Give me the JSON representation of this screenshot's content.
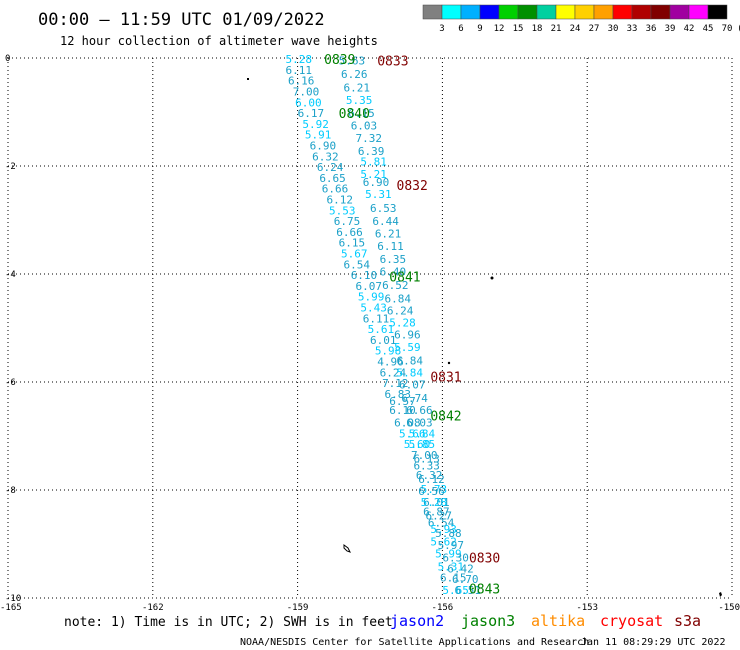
{
  "header": {
    "title": "00:00 – 11:59 UTC 01/09/2022",
    "subtitle": "12 hour collection of altimeter wave heights"
  },
  "legend": {
    "labels": [
      "3",
      "6",
      "9",
      "12",
      "15",
      "18",
      "21",
      "24",
      "27",
      "30",
      "33",
      "36",
      "39",
      "42",
      "45",
      "70",
      "(ft)"
    ],
    "colors": [
      "#808080",
      "#00ffff",
      "#00b0ff",
      "#0000ff",
      "#00d000",
      "#009000",
      "#00d0a0",
      "#ffff00",
      "#ffd000",
      "#ffa000",
      "#ff0000",
      "#b00000",
      "#800000",
      "#a000a0",
      "#ff00ff",
      "#000000"
    ]
  },
  "footer": {
    "note": "note: 1) Time is in UTC; 2) SWH is in feet",
    "satellites": [
      {
        "name": "jason2",
        "color": "#0000ff"
      },
      {
        "name": "jason3",
        "color": "#008000"
      },
      {
        "name": "altika",
        "color": "#ff8c00"
      },
      {
        "name": "cryosat",
        "color": "#ff0000"
      },
      {
        "name": "s3a",
        "color": "#800000"
      }
    ],
    "credit": "NOAA/NESDIS Center for Satellite Applications and Research",
    "timestamp": "Jan 11 08:29:29 UTC 2022"
  },
  "chart_data": {
    "type": "scatter",
    "xlim": [
      -165,
      -150
    ],
    "ylim": [
      -10,
      0
    ],
    "x_ticks": [
      -165,
      -162,
      -159,
      -156,
      -153,
      -150
    ],
    "y_ticks": [
      0,
      -2,
      -4,
      -6,
      -8,
      -10
    ],
    "grid": true,
    "colors": {
      "swh_light": "#00ccff",
      "swh_dark": "#1ba0c8",
      "jason3_time": "#008000",
      "s3a_time": "#800000"
    },
    "swh_values": [
      {
        "x": -159.25,
        "y": -0.02,
        "v": "5.28",
        "c": "swh_light"
      },
      {
        "x": -158.15,
        "y": -0.05,
        "v": "5.63",
        "c": "swh_dark"
      },
      {
        "x": -159.25,
        "y": -0.22,
        "v": "6.11",
        "c": "swh_dark"
      },
      {
        "x": -158.1,
        "y": -0.3,
        "v": "6.26",
        "c": "swh_dark"
      },
      {
        "x": -159.2,
        "y": -0.42,
        "v": "6.16",
        "c": "swh_dark"
      },
      {
        "x": -158.05,
        "y": -0.55,
        "v": "6.21",
        "c": "swh_dark"
      },
      {
        "x": -159.1,
        "y": -0.62,
        "v": "7.00",
        "c": "swh_dark"
      },
      {
        "x": -158.0,
        "y": -0.78,
        "v": "5.35",
        "c": "swh_light"
      },
      {
        "x": -159.05,
        "y": -0.82,
        "v": "6.00",
        "c": "swh_light"
      },
      {
        "x": -159.0,
        "y": -1.02,
        "v": "6.17",
        "c": "swh_dark"
      },
      {
        "x": -157.95,
        "y": -1.02,
        "v": "6.15",
        "c": "swh_dark"
      },
      {
        "x": -158.9,
        "y": -1.22,
        "v": "5.92",
        "c": "swh_light"
      },
      {
        "x": -157.9,
        "y": -1.25,
        "v": "6.03",
        "c": "swh_dark"
      },
      {
        "x": -158.85,
        "y": -1.42,
        "v": "5.91",
        "c": "swh_light"
      },
      {
        "x": -157.8,
        "y": -1.48,
        "v": "7.32",
        "c": "swh_dark"
      },
      {
        "x": -158.75,
        "y": -1.62,
        "v": "6.90",
        "c": "swh_dark"
      },
      {
        "x": -157.75,
        "y": -1.72,
        "v": "6.39",
        "c": "swh_dark"
      },
      {
        "x": -158.7,
        "y": -1.82,
        "v": "6.32",
        "c": "swh_dark"
      },
      {
        "x": -157.7,
        "y": -1.92,
        "v": "5.81",
        "c": "swh_light"
      },
      {
        "x": -158.6,
        "y": -2.02,
        "v": "6.24",
        "c": "swh_dark"
      },
      {
        "x": -157.7,
        "y": -2.15,
        "v": "5.21",
        "c": "swh_light"
      },
      {
        "x": -158.55,
        "y": -2.22,
        "v": "6.65",
        "c": "swh_dark"
      },
      {
        "x": -157.65,
        "y": -2.3,
        "v": "6.90",
        "c": "swh_dark"
      },
      {
        "x": -158.5,
        "y": -2.42,
        "v": "6.66",
        "c": "swh_dark"
      },
      {
        "x": -157.6,
        "y": -2.52,
        "v": "5.31",
        "c": "swh_light"
      },
      {
        "x": -158.4,
        "y": -2.62,
        "v": "6.12",
        "c": "swh_dark"
      },
      {
        "x": -157.5,
        "y": -2.78,
        "v": "6.53",
        "c": "swh_dark"
      },
      {
        "x": -158.35,
        "y": -2.82,
        "v": "5.53",
        "c": "swh_light"
      },
      {
        "x": -157.45,
        "y": -3.02,
        "v": "6.44",
        "c": "swh_dark"
      },
      {
        "x": -158.25,
        "y": -3.02,
        "v": "6.75",
        "c": "swh_dark"
      },
      {
        "x": -158.2,
        "y": -3.22,
        "v": "6.66",
        "c": "swh_dark"
      },
      {
        "x": -157.4,
        "y": -3.25,
        "v": "6.21",
        "c": "swh_dark"
      },
      {
        "x": -158.15,
        "y": -3.42,
        "v": "6.15",
        "c": "swh_dark"
      },
      {
        "x": -157.35,
        "y": -3.48,
        "v": "6.11",
        "c": "swh_dark"
      },
      {
        "x": -158.1,
        "y": -3.62,
        "v": "5.67",
        "c": "swh_light"
      },
      {
        "x": -157.3,
        "y": -3.72,
        "v": "6.35",
        "c": "swh_dark"
      },
      {
        "x": -158.05,
        "y": -3.82,
        "v": "6.54",
        "c": "swh_dark"
      },
      {
        "x": -157.9,
        "y": -4.02,
        "v": "6.10",
        "c": "swh_dark"
      },
      {
        "x": -157.3,
        "y": -3.95,
        "v": "6.40",
        "c": "swh_dark"
      },
      {
        "x": -157.25,
        "y": -4.2,
        "v": "6.52",
        "c": "swh_dark"
      },
      {
        "x": -157.8,
        "y": -4.22,
        "v": "6.07",
        "c": "swh_dark"
      },
      {
        "x": -157.75,
        "y": -4.42,
        "v": "5.99",
        "c": "swh_light"
      },
      {
        "x": -157.2,
        "y": -4.45,
        "v": "6.84",
        "c": "swh_dark"
      },
      {
        "x": -157.7,
        "y": -4.62,
        "v": "5.43",
        "c": "swh_light"
      },
      {
        "x": -157.15,
        "y": -4.68,
        "v": "6.24",
        "c": "swh_dark"
      },
      {
        "x": -157.65,
        "y": -4.82,
        "v": "6.11",
        "c": "swh_dark"
      },
      {
        "x": -157.1,
        "y": -4.9,
        "v": "5.28",
        "c": "swh_light"
      },
      {
        "x": -157.55,
        "y": -5.02,
        "v": "5.61",
        "c": "swh_light"
      },
      {
        "x": -157.0,
        "y": -5.12,
        "v": "6.96",
        "c": "swh_dark"
      },
      {
        "x": -157.5,
        "y": -5.22,
        "v": "6.01",
        "c": "swh_dark"
      },
      {
        "x": -157.0,
        "y": -5.35,
        "v": "5.59",
        "c": "swh_light"
      },
      {
        "x": -157.4,
        "y": -5.42,
        "v": "5.98",
        "c": "swh_light"
      },
      {
        "x": -156.95,
        "y": -5.6,
        "v": "6.84",
        "c": "swh_dark"
      },
      {
        "x": -157.35,
        "y": -5.62,
        "v": "4.96",
        "c": "swh_dark"
      },
      {
        "x": -157.3,
        "y": -5.82,
        "v": "6.24",
        "c": "swh_dark"
      },
      {
        "x": -156.95,
        "y": -5.82,
        "v": "5.84",
        "c": "swh_light"
      },
      {
        "x": -157.25,
        "y": -6.02,
        "v": "7.12",
        "c": "swh_dark"
      },
      {
        "x": -156.9,
        "y": -6.05,
        "v": "6.07",
        "c": "swh_dark"
      },
      {
        "x": -157.2,
        "y": -6.22,
        "v": "6.83",
        "c": "swh_dark"
      },
      {
        "x": -156.85,
        "y": -6.3,
        "v": "6.74",
        "c": "swh_dark"
      },
      {
        "x": -157.1,
        "y": -6.35,
        "v": "6.57",
        "c": "swh_dark"
      },
      {
        "x": -157.1,
        "y": -6.52,
        "v": "6.10",
        "c": "swh_dark"
      },
      {
        "x": -156.75,
        "y": -6.52,
        "v": "6.66",
        "c": "swh_dark"
      },
      {
        "x": -157.0,
        "y": -6.75,
        "v": "6.08",
        "c": "swh_dark"
      },
      {
        "x": -156.75,
        "y": -6.75,
        "v": "6.03",
        "c": "swh_dark"
      },
      {
        "x": -156.9,
        "y": -6.95,
        "v": "5.66",
        "c": "swh_light"
      },
      {
        "x": -156.7,
        "y": -6.95,
        "v": "5.84",
        "c": "swh_light"
      },
      {
        "x": -156.8,
        "y": -7.15,
        "v": "5.60",
        "c": "swh_light"
      },
      {
        "x": -156.7,
        "y": -7.15,
        "v": "5.85",
        "c": "swh_light"
      },
      {
        "x": -156.65,
        "y": -7.35,
        "v": "7.00",
        "c": "swh_dark"
      },
      {
        "x": -156.6,
        "y": -7.42,
        "v": "6.13",
        "c": "swh_dark"
      },
      {
        "x": -156.6,
        "y": -7.55,
        "v": "6.33",
        "c": "swh_dark"
      },
      {
        "x": -156.55,
        "y": -7.72,
        "v": "6.32",
        "c": "swh_dark"
      },
      {
        "x": -156.5,
        "y": -7.8,
        "v": "6.12",
        "c": "swh_dark"
      },
      {
        "x": -156.45,
        "y": -7.98,
        "v": "5.73",
        "c": "swh_light"
      },
      {
        "x": -156.5,
        "y": -8.02,
        "v": "6.56",
        "c": "swh_dark"
      },
      {
        "x": -156.4,
        "y": -8.22,
        "v": "6.01",
        "c": "swh_dark"
      },
      {
        "x": -156.45,
        "y": -8.22,
        "v": "5.28",
        "c": "swh_light"
      },
      {
        "x": -156.4,
        "y": -8.4,
        "v": "6.87",
        "c": "swh_dark"
      },
      {
        "x": -156.35,
        "y": -8.47,
        "v": "6.27",
        "c": "swh_dark"
      },
      {
        "x": -156.3,
        "y": -8.6,
        "v": "6.54",
        "c": "swh_dark"
      },
      {
        "x": -156.25,
        "y": -8.72,
        "v": "5.93",
        "c": "swh_light"
      },
      {
        "x": -156.15,
        "y": -8.8,
        "v": "5.88",
        "c": "swh_dark"
      },
      {
        "x": -156.25,
        "y": -8.95,
        "v": "5.62",
        "c": "swh_light"
      },
      {
        "x": -156.1,
        "y": -9.02,
        "v": "5.97",
        "c": "swh_dark"
      },
      {
        "x": -156.15,
        "y": -9.18,
        "v": "5.99",
        "c": "swh_light"
      },
      {
        "x": -156.0,
        "y": -9.25,
        "v": "6.30",
        "c": "swh_dark"
      },
      {
        "x": -156.1,
        "y": -9.42,
        "v": "5.31",
        "c": "swh_light"
      },
      {
        "x": -155.9,
        "y": -9.45,
        "v": "6.42",
        "c": "swh_dark"
      },
      {
        "x": -156.05,
        "y": -9.62,
        "v": "6.15",
        "c": "swh_dark"
      },
      {
        "x": -155.8,
        "y": -9.65,
        "v": "6.70",
        "c": "swh_dark"
      },
      {
        "x": -156.0,
        "y": -9.85,
        "v": "5.65",
        "c": "swh_light"
      },
      {
        "x": -155.75,
        "y": -9.85,
        "v": "6.51",
        "c": "swh_dark"
      }
    ],
    "time_labels": [
      {
        "x": -158.45,
        "y": -0.02,
        "v": "0839",
        "c": "jason3_time"
      },
      {
        "x": -157.35,
        "y": -0.05,
        "v": "0833",
        "c": "s3a_time"
      },
      {
        "x": -158.15,
        "y": -1.02,
        "v": "0840",
        "c": "jason3_time"
      },
      {
        "x": -156.95,
        "y": -2.35,
        "v": "0832",
        "c": "s3a_time"
      },
      {
        "x": -157.1,
        "y": -4.05,
        "v": "0841",
        "c": "jason3_time"
      },
      {
        "x": -156.25,
        "y": -5.9,
        "v": "0831",
        "c": "s3a_time"
      },
      {
        "x": -156.25,
        "y": -6.62,
        "v": "0842",
        "c": "jason3_time"
      },
      {
        "x": -155.45,
        "y": -9.25,
        "v": "0830",
        "c": "s3a_time"
      },
      {
        "x": -155.45,
        "y": -9.82,
        "v": "0843",
        "c": "jason3_time"
      }
    ]
  }
}
